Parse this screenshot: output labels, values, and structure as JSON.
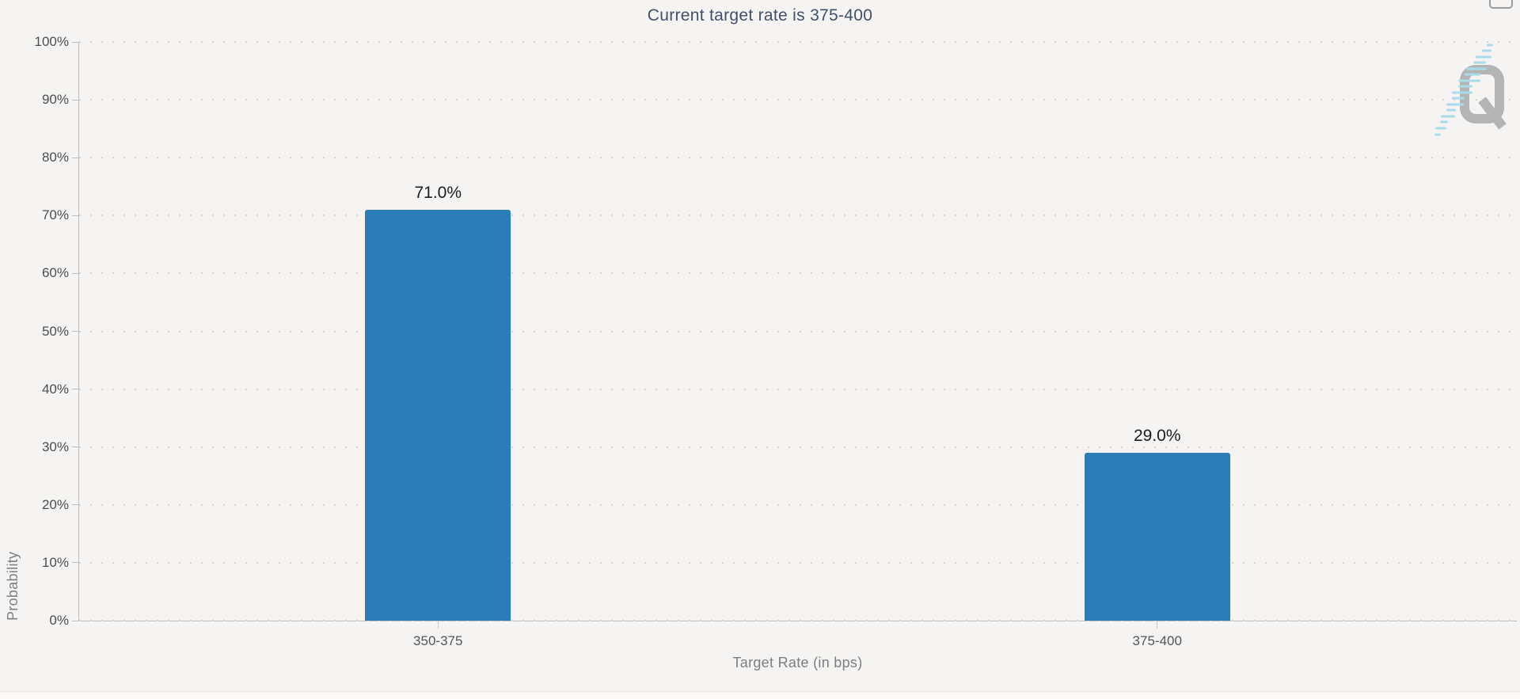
{
  "page": {
    "background": "#f5f4f2"
  },
  "chart_data": {
    "type": "bar",
    "title": "Current target rate is 375-400",
    "categories": [
      "350-375",
      "375-400"
    ],
    "values": [
      71.0,
      29.0
    ],
    "value_labels": [
      "71.0%",
      "29.0%"
    ],
    "xlabel": "Target Rate (in bps)",
    "ylabel": "Probability",
    "ylim": [
      0,
      100
    ],
    "ytick_step": 10,
    "ytick_labels": [
      "0%",
      "10%",
      "20%",
      "30%",
      "40%",
      "50%",
      "60%",
      "70%",
      "80%",
      "90%",
      "100%"
    ],
    "grid": "horizontal-dotted",
    "legend": "none",
    "bar_color": "#2a7db6"
  },
  "watermark": {
    "icon": "quikstrike-q-logo",
    "q_color": "#b4b4b4",
    "streak_color": "#a9dbeb"
  },
  "colors": {
    "background": "#f5f4f2",
    "title_text": "#41506a",
    "axis_line": "#bcbcbc",
    "grid_dot": "#d5d4d2",
    "tick_label": "#4e4e4e",
    "category_label": "#565656",
    "axis_title": "#7e7e7e",
    "value_label": "#1c1c1c",
    "bar": "#2a7db6"
  }
}
